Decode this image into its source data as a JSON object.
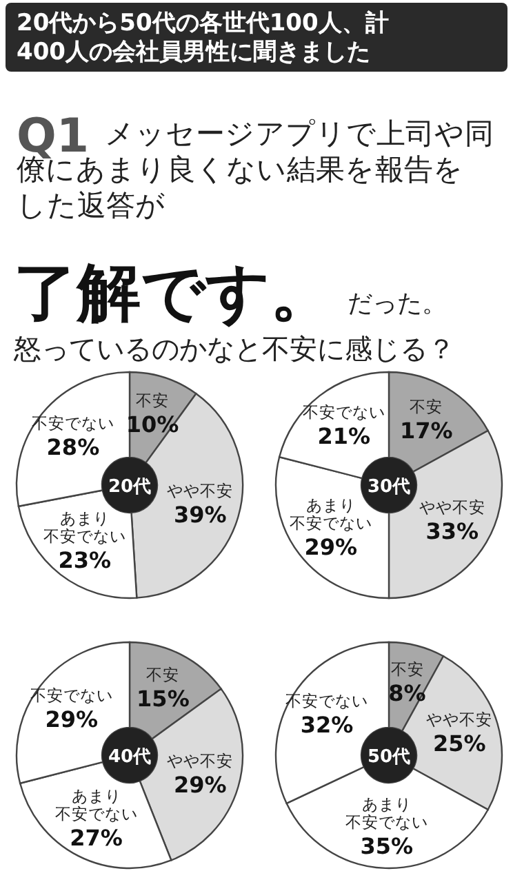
{
  "chart_data": [
    {
      "type": "other",
      "title": "20代から50代の各世代100人、計400人の会社員男性に聞きました",
      "annotations": [
        "Q1",
        "メッセージアプリで上司や同僚にあまり良くない結果を報告をした返答が",
        "了解です。",
        "だった。",
        "怒っているのかなと不安に感じる？"
      ]
    },
    {
      "type": "donut",
      "title": "20代",
      "categories": [
        "不安",
        "やや不安",
        "あまり不安でない",
        "不安でない"
      ],
      "values": [
        10,
        39,
        23,
        28
      ],
      "value_labels": [
        "10%",
        "39%",
        "23%",
        "28%"
      ],
      "colors": [
        "#a8a8a8",
        "#dcdcdc",
        "#ffffff",
        "#ffffff"
      ]
    },
    {
      "type": "donut",
      "title": "30代",
      "categories": [
        "不安",
        "やや不安",
        "あまり不安でない",
        "不安でない"
      ],
      "values": [
        17,
        33,
        29,
        21
      ],
      "value_labels": [
        "17%",
        "33%",
        "29%",
        "21%"
      ],
      "colors": [
        "#a8a8a8",
        "#dcdcdc",
        "#ffffff",
        "#ffffff"
      ]
    },
    {
      "type": "donut",
      "title": "40代",
      "categories": [
        "不安",
        "やや不安",
        "あまり不安でない",
        "不安でない"
      ],
      "values": [
        15,
        29,
        27,
        29
      ],
      "value_labels": [
        "15%",
        "29%",
        "27%",
        "29%"
      ],
      "colors": [
        "#a8a8a8",
        "#dcdcdc",
        "#ffffff",
        "#ffffff"
      ]
    },
    {
      "type": "donut",
      "title": "50代",
      "categories": [
        "不安",
        "やや不安",
        "あまり不安でない",
        "不安でない"
      ],
      "values": [
        8,
        25,
        35,
        32
      ],
      "value_labels": [
        "8%",
        "25%",
        "35%",
        "32%"
      ],
      "colors": [
        "#a8a8a8",
        "#dcdcdc",
        "#ffffff",
        "#ffffff"
      ]
    }
  ]
}
